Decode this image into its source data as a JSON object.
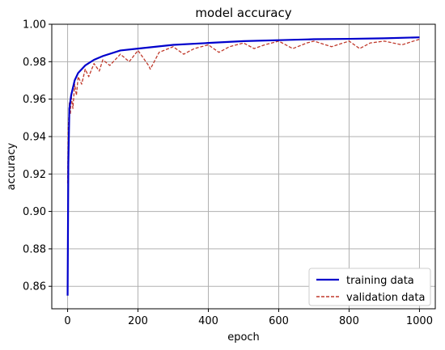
{
  "chart_data": {
    "type": "line",
    "title": "model accuracy",
    "xlabel": "epoch",
    "ylabel": "accuracy",
    "xlim": [
      -45,
      1045
    ],
    "ylim": [
      0.848,
      1.0
    ],
    "xticks": [
      0,
      200,
      400,
      600,
      800,
      1000
    ],
    "yticks": [
      0.86,
      0.88,
      0.9,
      0.92,
      0.94,
      0.96,
      0.98,
      1.0
    ],
    "ytick_labels": [
      "0.86",
      "0.88",
      "0.90",
      "0.92",
      "0.94",
      "0.96",
      "0.98",
      "1.00"
    ],
    "grid": true,
    "legend_position": "lower-right",
    "series": [
      {
        "name": "training data",
        "color": "#0000cc",
        "style": "solid",
        "x": [
          0,
          2,
          5,
          10,
          20,
          30,
          50,
          75,
          100,
          150,
          200,
          300,
          400,
          500,
          600,
          700,
          800,
          900,
          1000
        ],
        "y": [
          0.855,
          0.925,
          0.955,
          0.962,
          0.97,
          0.974,
          0.978,
          0.981,
          0.983,
          0.986,
          0.987,
          0.989,
          0.99,
          0.991,
          0.9915,
          0.992,
          0.9922,
          0.9925,
          0.993
        ]
      },
      {
        "name": "validation data",
        "color": "#c0392b",
        "style": "dashed",
        "x": [
          0,
          2,
          5,
          8,
          10,
          15,
          20,
          25,
          30,
          40,
          50,
          60,
          75,
          90,
          100,
          120,
          150,
          175,
          200,
          230,
          235,
          260,
          300,
          330,
          360,
          400,
          430,
          460,
          500,
          530,
          560,
          600,
          640,
          680,
          700,
          750,
          800,
          830,
          860,
          900,
          950,
          1000
        ],
        "y": [
          0.915,
          0.945,
          0.958,
          0.952,
          0.962,
          0.955,
          0.968,
          0.962,
          0.972,
          0.968,
          0.976,
          0.972,
          0.979,
          0.975,
          0.981,
          0.978,
          0.984,
          0.98,
          0.986,
          0.978,
          0.976,
          0.985,
          0.988,
          0.984,
          0.987,
          0.989,
          0.985,
          0.988,
          0.99,
          0.987,
          0.989,
          0.991,
          0.987,
          0.99,
          0.991,
          0.988,
          0.991,
          0.987,
          0.99,
          0.991,
          0.989,
          0.992
        ]
      }
    ]
  }
}
